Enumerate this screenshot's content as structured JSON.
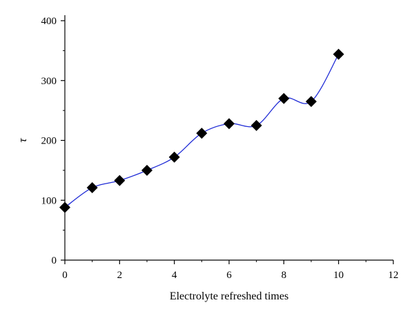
{
  "chart_data": {
    "type": "scatter",
    "title": "",
    "xlabel": "Electrolyte refreshed times",
    "ylabel": "τ",
    "xlim": [
      0,
      12
    ],
    "ylim": [
      0,
      400
    ],
    "xticks": [
      0,
      2,
      4,
      6,
      8,
      10,
      12
    ],
    "yticks": [
      0,
      100,
      200,
      300,
      400
    ],
    "grid": false,
    "legend": "none",
    "series": [
      {
        "marker": "diamond",
        "marker_color": "#000000",
        "line": "smooth",
        "line_color": "#1f2bd6",
        "x": [
          0,
          1,
          2,
          3,
          4,
          5,
          6,
          7,
          8,
          9,
          10
        ],
        "y": [
          88,
          121,
          133,
          150,
          172,
          212,
          228,
          225,
          270,
          265,
          344
        ]
      }
    ]
  }
}
